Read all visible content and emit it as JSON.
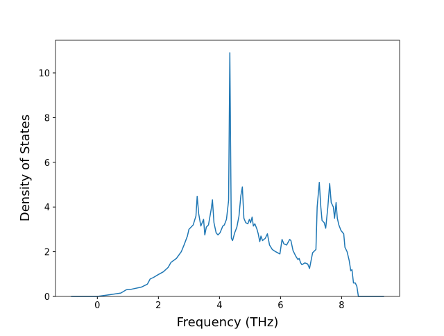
{
  "chart_data": {
    "type": "line",
    "xlabel": "Frequency (THz)",
    "ylabel": "Density of States",
    "x": [
      -0.86,
      0,
      0.43,
      0.77,
      0.95,
      1.11,
      1.45,
      1.64,
      1.73,
      1.84,
      2.0,
      2.16,
      2.32,
      2.41,
      2.59,
      2.75,
      2.84,
      2.95,
      3.0,
      3.14,
      3.23,
      3.27,
      3.32,
      3.39,
      3.45,
      3.48,
      3.52,
      3.57,
      3.64,
      3.73,
      3.77,
      3.82,
      3.89,
      3.95,
      4.02,
      4.11,
      4.16,
      4.23,
      4.3,
      4.34,
      4.39,
      4.43,
      4.5,
      4.57,
      4.64,
      4.7,
      4.75,
      4.8,
      4.86,
      4.93,
      4.98,
      5.02,
      5.07,
      5.11,
      5.16,
      5.23,
      5.27,
      5.32,
      5.36,
      5.41,
      5.5,
      5.57,
      5.64,
      5.73,
      5.84,
      5.98,
      6.05,
      6.11,
      6.2,
      6.3,
      6.34,
      6.41,
      6.5,
      6.57,
      6.61,
      6.66,
      6.7,
      6.8,
      6.89,
      6.95,
      7.05,
      7.16,
      7.2,
      7.27,
      7.32,
      7.36,
      7.43,
      7.48,
      7.55,
      7.61,
      7.66,
      7.73,
      7.77,
      7.82,
      7.86,
      7.91,
      7.98,
      8.07,
      8.11,
      8.18,
      8.25,
      8.3,
      8.34,
      8.39,
      8.45,
      8.5,
      8.55,
      9.39
    ],
    "series": [
      {
        "color": "#1f77b4",
        "values": [
          0,
          0,
          0.08,
          0.15,
          0.3,
          0.32,
          0.42,
          0.55,
          0.78,
          0.85,
          0.98,
          1.1,
          1.3,
          1.52,
          1.7,
          2.0,
          2.3,
          2.7,
          3.0,
          3.2,
          3.6,
          4.48,
          3.7,
          3.15,
          3.35,
          3.45,
          2.75,
          3.1,
          3.2,
          3.9,
          4.32,
          3.3,
          2.85,
          2.75,
          2.85,
          3.15,
          3.2,
          3.45,
          4.3,
          10.9,
          2.6,
          2.5,
          2.85,
          3.1,
          3.6,
          4.5,
          4.9,
          3.5,
          3.3,
          3.25,
          3.45,
          3.3,
          3.55,
          3.15,
          3.25,
          3.0,
          2.8,
          2.45,
          2.7,
          2.5,
          2.6,
          2.8,
          2.3,
          2.1,
          2.0,
          1.9,
          2.55,
          2.35,
          2.3,
          2.55,
          2.5,
          2.05,
          1.8,
          1.65,
          1.7,
          1.5,
          1.42,
          1.5,
          1.45,
          1.25,
          1.95,
          2.1,
          4.0,
          5.1,
          4.0,
          3.4,
          3.3,
          3.05,
          4.0,
          5.05,
          4.2,
          4.0,
          3.5,
          4.2,
          3.5,
          3.2,
          2.95,
          2.8,
          2.2,
          2.0,
          1.6,
          1.15,
          1.2,
          0.6,
          0.6,
          0.45,
          0,
          0
        ]
      }
    ],
    "xlim": [
      -1.37,
      9.9
    ],
    "xticks": [
      0,
      2,
      4,
      6,
      8
    ],
    "ylim": [
      0,
      11.46
    ],
    "yticks": [
      0,
      2,
      4,
      6,
      8,
      10
    ]
  }
}
